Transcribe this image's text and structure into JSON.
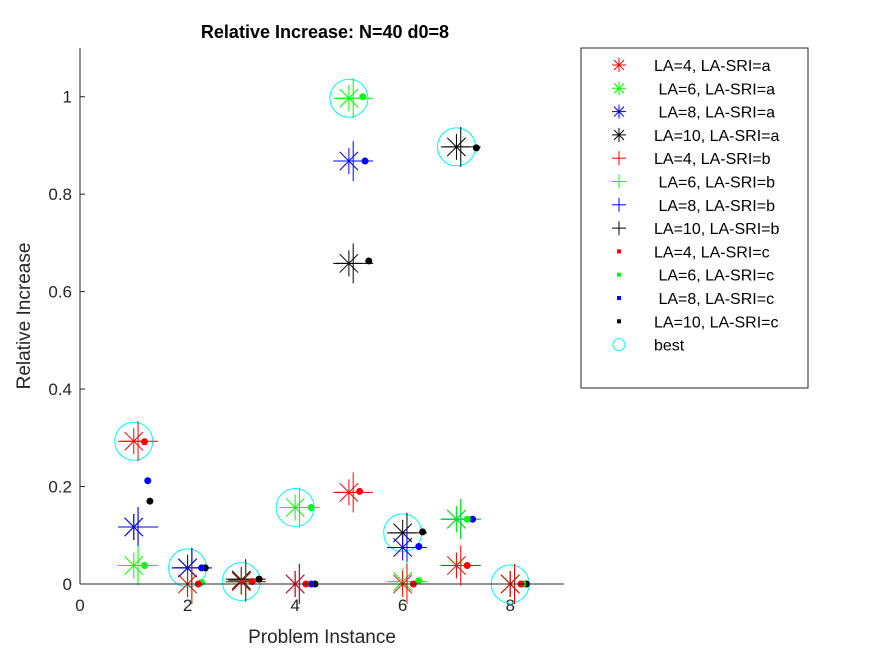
{
  "chart_data": {
    "type": "scatter",
    "title": "Relative Increase:  N=40 d0=8",
    "xlabel": "Problem Instance",
    "ylabel": "Relative Increase",
    "xlim": [
      0,
      9
    ],
    "ylim": [
      0,
      1.1
    ],
    "xticks": [
      0,
      2,
      4,
      6,
      8
    ],
    "yticks": [
      0,
      0.2,
      0.4,
      0.6,
      0.8,
      1
    ],
    "xtick_labels": [
      "0",
      "2",
      "4",
      "6",
      "8"
    ],
    "ytick_labels": [
      "0",
      "0.2",
      "0.4",
      "0.6",
      "0.8",
      "1"
    ],
    "grid": false,
    "legend_position": "outside-top-right",
    "colors": {
      "LA=4": "#ff0000",
      "LA=6": "#00ff00",
      "LA=8": "#0000ff",
      "LA=10": "#000000",
      "best": "#00ffff"
    },
    "series": [
      {
        "name": "LA=4, LA-SRI=a",
        "marker": "asterisk",
        "color": "#ff0000",
        "x": [
          1,
          2,
          3,
          4,
          5,
          6,
          7,
          8
        ],
        "y": [
          0.293,
          0.0,
          0.005,
          0.0,
          0.188,
          0.0,
          0.038,
          0.0
        ]
      },
      {
        "name": " LA=6, LA-SRI=a",
        "marker": "asterisk",
        "color": "#00ff00",
        "x": [
          1,
          2,
          3,
          4,
          5,
          6,
          7,
          8
        ],
        "y": [
          0.038,
          0.0,
          0.005,
          0.157,
          0.997,
          0.005,
          0.133,
          0.0
        ]
      },
      {
        "name": " LA=8, LA-SRI=a",
        "marker": "asterisk",
        "color": "#0000ff",
        "x": [
          1,
          2,
          3,
          4,
          5,
          6,
          7,
          8
        ],
        "y": [
          0.117,
          0.033,
          0.005,
          0.0,
          0.868,
          0.075,
          0.133,
          0.0
        ]
      },
      {
        "name": "LA=10, LA-SRI=a",
        "marker": "asterisk",
        "color": "#000000",
        "x": [
          1,
          2,
          3,
          4,
          5,
          6,
          7,
          8
        ],
        "y": [
          0.117,
          0.033,
          0.008,
          0.0,
          0.658,
          0.105,
          0.897,
          0.0
        ]
      },
      {
        "name": "LA=4, LA-SRI=b",
        "marker": "plus",
        "color": "#ff0000",
        "x": [
          1.08,
          2.08,
          3.08,
          4.08,
          5.08,
          6.08,
          7.08,
          8.08
        ],
        "y": [
          0.293,
          0.0,
          0.005,
          0.0,
          0.188,
          0.0,
          0.038,
          0.0
        ]
      },
      {
        "name": " LA=6, LA-SRI=b",
        "marker": "plus",
        "color": "#00ff00",
        "x": [
          1.08,
          2.08,
          3.08,
          4.08,
          5.08,
          6.08,
          7.08,
          8.08
        ],
        "y": [
          0.038,
          0.0,
          0.005,
          0.157,
          0.997,
          0.005,
          0.133,
          0.0
        ]
      },
      {
        "name": " LA=8, LA-SRI=b",
        "marker": "plus",
        "color": "#0000ff",
        "x": [
          1.08,
          2.08,
          3.08,
          4.08,
          5.08,
          6.08,
          7.08,
          8.08
        ],
        "y": [
          0.117,
          0.033,
          0.005,
          0.0,
          0.868,
          0.075,
          0.133,
          0.0
        ]
      },
      {
        "name": "LA=10, LA-SRI=b",
        "marker": "plus",
        "color": "#000000",
        "x": [
          1.08,
          2.08,
          3.08,
          4.08,
          5.08,
          6.08,
          7.08,
          8.08
        ],
        "y": [
          0.117,
          0.033,
          0.01,
          0.0,
          0.658,
          0.105,
          0.897,
          0.0
        ]
      },
      {
        "name": "LA=4, LA-SRI=c",
        "marker": "dot",
        "color": "#ff0000",
        "x": [
          1.2,
          2.2,
          3.2,
          4.2,
          5.2,
          6.2,
          7.2,
          8.2
        ],
        "y": [
          0.292,
          0.0,
          0.005,
          0.0,
          0.19,
          0.0,
          0.038,
          0.0
        ]
      },
      {
        "name": " LA=6, LA-SRI=c",
        "marker": "dot",
        "color": "#00ff00",
        "x": [
          1.2,
          2.26,
          3.2,
          4.3,
          5.26,
          6.3,
          7.2,
          8.24
        ],
        "y": [
          0.038,
          0.003,
          0.005,
          0.157,
          1.0,
          0.007,
          0.133,
          0.0
        ]
      },
      {
        "name": " LA=8, LA-SRI=c",
        "marker": "dot",
        "color": "#0000ff",
        "x": [
          1.26,
          2.26,
          3.2,
          4.3,
          5.3,
          6.3,
          7.3,
          8.24
        ],
        "y": [
          0.212,
          0.033,
          0.005,
          0.0,
          0.868,
          0.077,
          0.133,
          0.0
        ]
      },
      {
        "name": "LA=10, LA-SRI=c",
        "marker": "dot",
        "color": "#000000",
        "x": [
          1.3,
          2.33,
          3.33,
          4.37,
          5.37,
          6.37,
          7.37,
          8.3
        ],
        "y": [
          0.17,
          0.033,
          0.01,
          0.0,
          0.663,
          0.107,
          0.895,
          0.0
        ]
      },
      {
        "name": "best",
        "marker": "circle",
        "color": "#00ffff",
        "x": [
          1,
          2,
          3,
          4,
          5,
          6,
          7,
          8
        ],
        "y": [
          0.293,
          0.033,
          0.005,
          0.157,
          0.997,
          0.105,
          0.897,
          0.0
        ]
      }
    ]
  }
}
